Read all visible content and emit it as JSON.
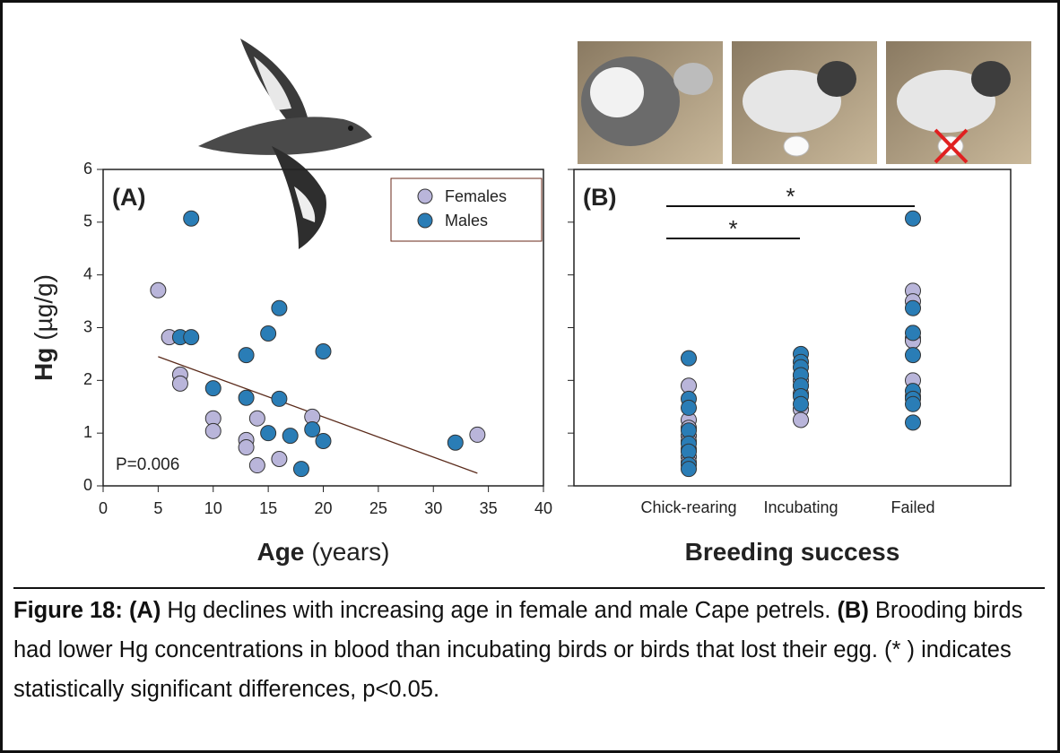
{
  "chart_data": [
    {
      "type": "scatter",
      "panel_label": "(A)",
      "xlabel": [
        "Age",
        "(years)"
      ],
      "ylabel": [
        "Hg",
        "(µg/g)"
      ],
      "xlim": [
        0,
        40
      ],
      "xticks": [
        0,
        5,
        10,
        15,
        20,
        25,
        30,
        35,
        40
      ],
      "ylim": [
        0,
        6
      ],
      "yticks": [
        0,
        1,
        2,
        3,
        4,
        5,
        6
      ],
      "ytick_labels": true,
      "legend": "upper right",
      "series": [
        {
          "name": "Females",
          "color": "#b9b5da",
          "x": [
            5,
            6,
            7,
            7,
            10,
            10,
            13,
            13,
            14,
            14,
            16,
            19,
            34
          ],
          "values": [
            3.71,
            2.82,
            2.11,
            1.94,
            1.28,
            1.04,
            0.87,
            0.73,
            1.28,
            0.39,
            0.51,
            1.31,
            0.97
          ]
        },
        {
          "name": "Males",
          "color": "#2a7db6",
          "x": [
            8,
            7,
            8,
            10,
            13,
            13,
            15,
            15,
            16,
            16,
            17,
            18,
            19,
            20,
            20,
            32
          ],
          "values": [
            5.07,
            2.82,
            2.82,
            1.85,
            2.48,
            1.67,
            2.89,
            1.0,
            3.37,
            1.65,
            0.95,
            0.32,
            1.07,
            2.55,
            0.85,
            0.82
          ]
        }
      ],
      "trendline": {
        "x": [
          5,
          34
        ],
        "values": [
          2.45,
          0.24
        ]
      },
      "annotations": [
        "P=0.006"
      ]
    },
    {
      "type": "strip",
      "panel_label": "(B)",
      "xlabel": [
        "Breeding success"
      ],
      "categories": [
        "Chick-rearing",
        "Incubating",
        "Failed"
      ],
      "ylim": [
        0,
        6
      ],
      "yticks": [
        0,
        1,
        2,
        3,
        4,
        5,
        6
      ],
      "ytick_labels": false,
      "series": [
        {
          "color": "#b9b5da",
          "values": [
            [
              1.9,
              1.25,
              1.1,
              0.95,
              0.85,
              0.7,
              0.55,
              0.45
            ],
            [
              2.1,
              2.0,
              1.9,
              1.75,
              1.45,
              1.25
            ],
            [
              3.7,
              3.5,
              2.8,
              2.75,
              2.0,
              1.7
            ]
          ]
        },
        {
          "color": "#2a7db6",
          "values": [
            [
              2.42,
              1.65,
              1.48,
              1.05,
              0.8,
              0.65,
              0.4,
              0.32
            ],
            [
              2.5,
              2.35,
              2.25,
              2.1,
              1.9,
              1.7,
              1.55
            ],
            [
              5.07,
              3.37,
              2.9,
              2.48,
              1.8,
              1.65,
              1.55,
              1.2
            ]
          ]
        }
      ],
      "annotations": [
        "*",
        "*"
      ]
    }
  ],
  "caption": [
    {
      "text": "Figure 18: (A)",
      "bold": true
    },
    {
      "text": " Hg declines with increasing age in female and male Cape petrels. ",
      "bold": false
    },
    {
      "text": "(B)",
      "bold": true
    },
    {
      "text": " Brooding birds had lower Hg concentrations in blood than incubating birds or birds that lost their egg. (* ) indicates statistically significant differences, p<0.05.",
      "bold": false
    }
  ]
}
